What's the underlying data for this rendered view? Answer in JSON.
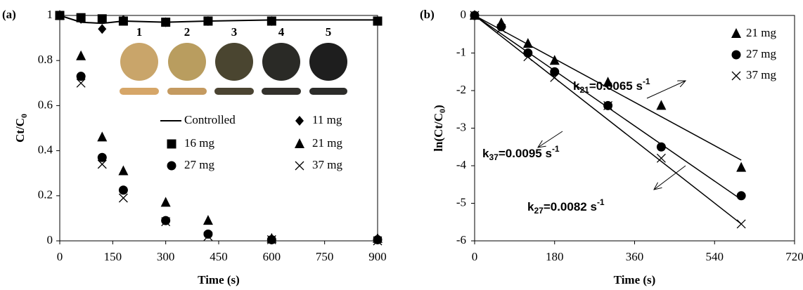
{
  "chart_data": [
    {
      "type": "scatter",
      "panel_label": "(a)",
      "xlabel": "Time (s)",
      "ylabel": {
        "text": "Ct/C",
        "sub": "0"
      },
      "x": [
        0,
        60,
        120,
        180,
        300,
        420,
        600,
        900
      ],
      "xlim": [
        0,
        900
      ],
      "xticks": [
        0,
        150,
        300,
        450,
        600,
        750,
        900
      ],
      "ylim": [
        0,
        1
      ],
      "yticks": [
        0,
        0.2,
        0.4,
        0.6,
        0.8,
        1
      ],
      "series": [
        {
          "name": "Controlled",
          "color": "#000000",
          "marker": "line",
          "values": [
            1,
            0.97,
            0.965,
            0.975,
            0.97,
            0.975,
            0.98,
            0.98
          ]
        },
        {
          "name": "11 mg",
          "color": "#000000",
          "marker": "diamond",
          "values": [
            1,
            0.985,
            0.94,
            0.98,
            0.97,
            0.975,
            0.975,
            0.975
          ]
        },
        {
          "name": "16 mg",
          "color": "#000000",
          "marker": "square",
          "values": [
            1,
            0.99,
            0.985,
            0.975,
            0.97,
            0.975,
            0.975,
            0.975
          ]
        },
        {
          "name": "21 mg",
          "color": "#000000",
          "marker": "triangle",
          "values": [
            1,
            0.82,
            0.46,
            0.31,
            0.17,
            0.09,
            0.01,
            0.01
          ]
        },
        {
          "name": "27 mg",
          "color": "#000000",
          "marker": "circle",
          "values": [
            1,
            0.73,
            0.37,
            0.225,
            0.09,
            0.03,
            0.005,
            0.005
          ]
        },
        {
          "name": "37 mg",
          "color": "#000000",
          "marker": "x",
          "values": [
            1,
            0.7,
            0.34,
            0.19,
            0.085,
            0.02,
            0.005,
            0
          ]
        }
      ],
      "inset_labels": [
        "1",
        "2",
        "3",
        "4",
        "5"
      ]
    },
    {
      "type": "scatter",
      "panel_label": "(b)",
      "xlabel": "Time (s)",
      "ylabel": {
        "text": "ln(Ct/C",
        "sub": "0",
        "end": ")"
      },
      "x": [
        0,
        60,
        120,
        180,
        300,
        420,
        600
      ],
      "xlim": [
        0,
        720
      ],
      "xticks": [
        0,
        180,
        360,
        540,
        720
      ],
      "ylim": [
        -6,
        0
      ],
      "yticks": [
        0,
        -1,
        -2,
        -3,
        -4,
        -5,
        -6
      ],
      "series": [
        {
          "name": "21 mg",
          "color": "#000000",
          "marker": "triangle",
          "values": [
            0,
            -0.2,
            -0.75,
            -1.2,
            -1.78,
            -2.4,
            -4.05
          ],
          "fit_x": [
            0,
            600
          ],
          "fit": [
            0,
            -3.85
          ]
        },
        {
          "name": "27 mg",
          "color": "#000000",
          "marker": "circle",
          "values": [
            0,
            -0.3,
            -1.0,
            -1.5,
            -2.4,
            -3.5,
            -4.8
          ],
          "fit_x": [
            0,
            600
          ],
          "fit": [
            0,
            -4.9
          ]
        },
        {
          "name": "37 mg",
          "color": "#000000",
          "marker": "x",
          "values": [
            0,
            -0.35,
            -1.1,
            -1.65,
            -2.4,
            -3.8,
            -5.55
          ],
          "fit_x": [
            0,
            600
          ],
          "fit": [
            0,
            -5.55
          ]
        }
      ],
      "annotations": [
        {
          "k": "k",
          "sub": "21",
          "text": "=0.0065 s",
          "sup": "-1"
        },
        {
          "k": "k",
          "sub": "37",
          "text": "=0.0095 s",
          "sup": "-1"
        },
        {
          "k": "k",
          "sub": "27",
          "text": "=0.0082 s",
          "sup": "-1"
        }
      ]
    }
  ]
}
